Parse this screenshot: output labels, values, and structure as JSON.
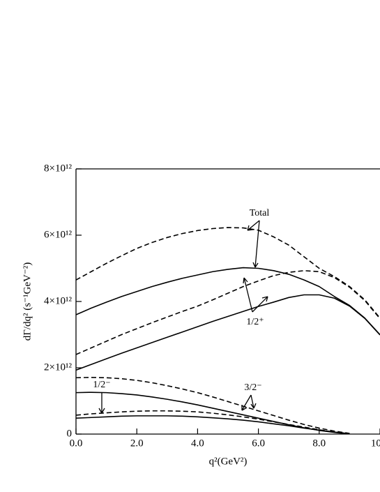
{
  "chart_data": {
    "type": "line",
    "x_label": "q²(GeV²)",
    "y_label": "dΓ/dq² (s⁻¹GeV⁻²)",
    "annotations": [
      "Total",
      "1/2⁺",
      "1/2⁻",
      "3/2⁻"
    ],
    "x": [
      0,
      0.5,
      1,
      1.5,
      2,
      2.5,
      3,
      3.5,
      4,
      4.5,
      5,
      5.5,
      6,
      6.5,
      7,
      7.5,
      8,
      8.5,
      9,
      9.5,
      10
    ],
    "xlim": [
      0,
      10
    ],
    "xticks": [
      {
        "value": 0,
        "label": "0.0"
      },
      {
        "value": 2,
        "label": "2.0"
      },
      {
        "value": 4,
        "label": "4.0"
      },
      {
        "value": 6,
        "label": "6.0"
      },
      {
        "value": 8,
        "label": "8.0"
      },
      {
        "value": 10,
        "label": "10.0"
      }
    ],
    "ylim": [
      0,
      8000000000000.0
    ],
    "yticks": [
      0,
      {
        "value": 2000000000000.0,
        "label": "2×10¹²"
      },
      {
        "value": 4000000000000.0,
        "label": "4×10¹²"
      },
      {
        "value": 6000000000000.0,
        "label": "6×10¹²"
      },
      {
        "value": 8000000000000.0,
        "label": "8×10¹²"
      }
    ],
    "series": [
      {
        "color": "#000000",
        "style": "dashed",
        "values": [
          4650000000000.0,
          4900000000000.0,
          5150000000000.0,
          5380000000000.0,
          5600000000000.0,
          5780000000000.0,
          5930000000000.0,
          6050000000000.0,
          6140000000000.0,
          6200000000000.0,
          6230000000000.0,
          6220000000000.0,
          6150000000000.0,
          5950000000000.0,
          5700000000000.0,
          5350000000000.0,
          5000000000000.0,
          4750000000000.0,
          4450000000000.0,
          4050000000000.0,
          3500000000000.0
        ]
      },
      {
        "color": "#000000",
        "style": "solid",
        "values": [
          3600000000000.0,
          3800000000000.0,
          3980000000000.0,
          4150000000000.0,
          4300000000000.0,
          4450000000000.0,
          4580000000000.0,
          4700000000000.0,
          4800000000000.0,
          4900000000000.0,
          4970000000000.0,
          5020000000000.0,
          5000000000000.0,
          4930000000000.0,
          4820000000000.0,
          4650000000000.0,
          4450000000000.0,
          4150000000000.0,
          3880000000000.0,
          3500000000000.0,
          3000000000000.0
        ]
      },
      {
        "color": "#000000",
        "style": "dashed",
        "values": [
          2400000000000.0,
          2600000000000.0,
          2800000000000.0,
          3000000000000.0,
          3180000000000.0,
          3360000000000.0,
          3530000000000.0,
          3700000000000.0,
          3860000000000.0,
          4050000000000.0,
          4250000000000.0,
          4450000000000.0,
          4620000000000.0,
          4780000000000.0,
          4880000000000.0,
          4930000000000.0,
          4900000000000.0,
          4720000000000.0,
          4430000000000.0,
          4030000000000.0,
          3480000000000.0
        ]
      },
      {
        "color": "#000000",
        "style": "solid",
        "values": [
          1930000000000.0,
          2100000000000.0,
          2270000000000.0,
          2440000000000.0,
          2600000000000.0,
          2760000000000.0,
          2920000000000.0,
          3080000000000.0,
          3240000000000.0,
          3400000000000.0,
          3550000000000.0,
          3700000000000.0,
          3850000000000.0,
          3980000000000.0,
          4120000000000.0,
          4200000000000.0,
          4200000000000.0,
          4100000000000.0,
          3860000000000.0,
          3490000000000.0,
          2990000000000.0
        ]
      },
      {
        "color": "#000000",
        "style": "dashed",
        "values": [
          1700000000000.0,
          1710000000000.0,
          1700000000000.0,
          1670000000000.0,
          1620000000000.0,
          1550000000000.0,
          1460000000000.0,
          1360000000000.0,
          1250000000000.0,
          1120000000000.0,
          980000000000.0,
          840000000000.0,
          700000000000.0,
          560000000000.0,
          420000000000.0,
          290000000000.0,
          180000000000.0,
          90000000000.0,
          20000000000.0,
          null,
          null
        ]
      },
      {
        "color": "#000000",
        "style": "solid",
        "values": [
          1250000000000.0,
          1260000000000.0,
          1250000000000.0,
          1220000000000.0,
          1180000000000.0,
          1120000000000.0,
          1050000000000.0,
          970000000000.0,
          880000000000.0,
          780000000000.0,
          680000000000.0,
          580000000000.0,
          480000000000.0,
          380000000000.0,
          280000000000.0,
          190000000000.0,
          110000000000.0,
          50000000000.0,
          0,
          null,
          null
        ]
      },
      {
        "color": "#000000",
        "style": "dashed",
        "values": [
          570000000000.0,
          610000000000.0,
          640000000000.0,
          670000000000.0,
          690000000000.0,
          700000000000.0,
          700000000000.0,
          690000000000.0,
          670000000000.0,
          630000000000.0,
          580000000000.0,
          520000000000.0,
          450000000000.0,
          370000000000.0,
          290000000000.0,
          210000000000.0,
          130000000000.0,
          60000000000.0,
          10000000000.0,
          null,
          null
        ]
      },
      {
        "color": "#000000",
        "style": "solid",
        "values": [
          480000000000.0,
          500000000000.0,
          520000000000.0,
          540000000000.0,
          550000000000.0,
          550000000000.0,
          550000000000.0,
          540000000000.0,
          520000000000.0,
          490000000000.0,
          460000000000.0,
          420000000000.0,
          370000000000.0,
          310000000000.0,
          250000000000.0,
          180000000000.0,
          120000000000.0,
          60000000000.0,
          10000000000.0,
          null,
          null
        ]
      }
    ]
  }
}
